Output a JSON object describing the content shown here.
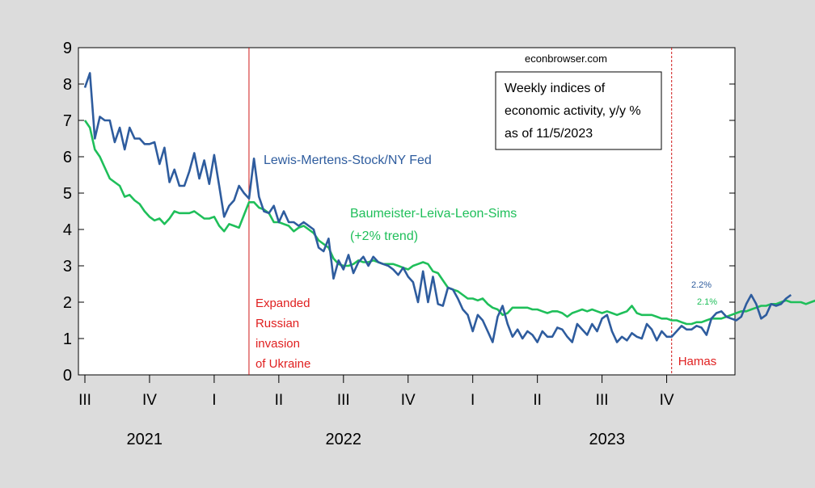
{
  "chart_data": {
    "type": "line",
    "source": "econbrowser.com",
    "legend": [
      "Weekly indices of",
      "economic activity, y/y %",
      "as of 11/5/2023"
    ],
    "ylim": [
      0,
      9
    ],
    "yticks": [
      0,
      1,
      2,
      3,
      4,
      5,
      6,
      7,
      8,
      9
    ],
    "quarter_labels": [
      {
        "label": "III",
        "week": 0
      },
      {
        "label": "IV",
        "week": 13
      },
      {
        "label": "I",
        "week": 26
      },
      {
        "label": "II",
        "week": 39
      },
      {
        "label": "III",
        "week": 52
      },
      {
        "label": "IV",
        "week": 65
      },
      {
        "label": "I",
        "week": 78
      },
      {
        "label": "II",
        "week": 91
      },
      {
        "label": "III",
        "week": 104
      },
      {
        "label": "IV",
        "week": 117
      }
    ],
    "year_labels": [
      {
        "label": "2021",
        "week": 12
      },
      {
        "label": "2022",
        "week": 52
      },
      {
        "label": "2023",
        "week": 105
      }
    ],
    "events": [
      {
        "week": 33,
        "label": [
          "Expanded",
          "Russian",
          "invasion",
          "of Ukraine"
        ]
      },
      {
        "week": 118,
        "label": [
          "Hamas"
        ]
      }
    ],
    "series": [
      {
        "name": "Lewis-Mertens-Stock/NY Fed",
        "color": "#2e5c9e",
        "end_label": "2.2%",
        "values": [
          7.9,
          8.3,
          6.5,
          7.1,
          7.0,
          7.0,
          6.4,
          6.8,
          6.2,
          6.8,
          6.5,
          6.5,
          6.35,
          6.35,
          6.4,
          5.8,
          6.25,
          5.3,
          5.65,
          5.2,
          5.2,
          5.6,
          6.1,
          5.4,
          5.9,
          5.25,
          6.05,
          5.2,
          4.35,
          4.65,
          4.8,
          5.2,
          5.0,
          4.85,
          5.95,
          4.9,
          4.5,
          4.45,
          4.65,
          4.2,
          4.5,
          4.2,
          4.2,
          4.1,
          4.2,
          4.1,
          4.0,
          3.5,
          3.4,
          3.75,
          2.65,
          3.15,
          2.9,
          3.3,
          2.8,
          3.1,
          3.25,
          3.0,
          3.25,
          3.1,
          3.05,
          3.0,
          2.9,
          2.75,
          2.95,
          2.7,
          2.55,
          2.0,
          2.85,
          2.0,
          2.7,
          1.95,
          1.9,
          2.4,
          2.35,
          2.1,
          1.8,
          1.65,
          1.2,
          1.65,
          1.5,
          1.2,
          0.9,
          1.6,
          1.9,
          1.4,
          1.05,
          1.25,
          1.0,
          1.2,
          1.1,
          0.9,
          1.2,
          1.05,
          1.05,
          1.3,
          1.25,
          1.05,
          0.9,
          1.4,
          1.25,
          1.1,
          1.4,
          1.2,
          1.55,
          1.65,
          1.2,
          0.9,
          1.05,
          0.95,
          1.15,
          1.05,
          1.0,
          1.4,
          1.25,
          0.95,
          1.2,
          1.05,
          1.05,
          1.2,
          1.35,
          1.25,
          1.25,
          1.35,
          1.3,
          1.1,
          1.55,
          1.7,
          1.75,
          1.6,
          1.55,
          1.5,
          1.6,
          1.95,
          2.2,
          1.95,
          1.55,
          1.65,
          1.95,
          1.9,
          1.95,
          2.1,
          2.2
        ]
      },
      {
        "name": "Baumeister-Leiva-Leon-Sims",
        "label_line2": "(+2% trend)",
        "color": "#1fbf5a",
        "end_label": "2.1%",
        "values": [
          7.0,
          6.8,
          6.2,
          6.0,
          5.7,
          5.4,
          5.3,
          5.2,
          4.9,
          4.95,
          4.8,
          4.7,
          4.5,
          4.35,
          4.25,
          4.3,
          4.15,
          4.3,
          4.5,
          4.45,
          4.45,
          4.45,
          4.5,
          4.4,
          4.3,
          4.3,
          4.35,
          4.1,
          3.95,
          4.15,
          4.1,
          4.05,
          4.4,
          4.75,
          4.75,
          4.6,
          4.55,
          4.45,
          4.2,
          4.2,
          4.15,
          4.1,
          3.95,
          4.05,
          4.1,
          4.0,
          3.9,
          3.7,
          3.6,
          3.5,
          3.2,
          3.05,
          3.0,
          3.0,
          3.05,
          3.15,
          3.1,
          3.1,
          3.15,
          3.1,
          3.05,
          3.05,
          3.05,
          3.0,
          2.95,
          2.9,
          3.0,
          3.05,
          3.1,
          3.05,
          2.85,
          2.8,
          2.6,
          2.4,
          2.35,
          2.3,
          2.2,
          2.1,
          2.1,
          2.05,
          2.1,
          1.95,
          1.85,
          1.8,
          1.65,
          1.7,
          1.85,
          1.85,
          1.85,
          1.85,
          1.8,
          1.8,
          1.75,
          1.7,
          1.75,
          1.75,
          1.7,
          1.6,
          1.7,
          1.75,
          1.8,
          1.75,
          1.8,
          1.75,
          1.7,
          1.75,
          1.7,
          1.65,
          1.7,
          1.75,
          1.9,
          1.7,
          1.65,
          1.65,
          1.65,
          1.6,
          1.55,
          1.55,
          1.5,
          1.5,
          1.45,
          1.4,
          1.4,
          1.45,
          1.45,
          1.5,
          1.55,
          1.55,
          1.55,
          1.6,
          1.65,
          1.7,
          1.75,
          1.75,
          1.8,
          1.85,
          1.9,
          1.9,
          1.95,
          1.95,
          2.0,
          2.05,
          2.0,
          2.0,
          2.0,
          1.95,
          2.0,
          2.05,
          2.1
        ]
      }
    ]
  }
}
